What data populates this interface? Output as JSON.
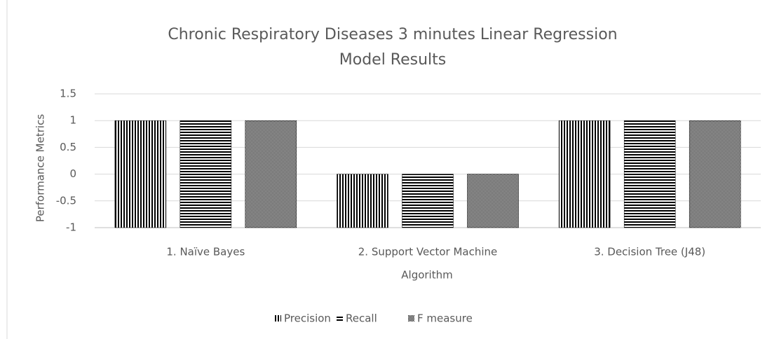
{
  "chart_data": {
    "type": "bar",
    "title": [
      "Chronic Respiratory Diseases 3 minutes  Linear Regression",
      "Model Results"
    ],
    "xlabel": "Algorithm",
    "ylabel": "Performance Metrics",
    "categories": [
      "1. Naïve Bayes",
      "2. Support Vector Machine",
      "3. Decision Tree (J48)"
    ],
    "series": [
      {
        "name": "Precision",
        "color": "#000000",
        "pattern": "vertical",
        "values": [
          1,
          0,
          1
        ]
      },
      {
        "name": "Recall",
        "color": "#000000",
        "pattern": "horizontal",
        "values": [
          1,
          0,
          1
        ]
      },
      {
        "name": "F measure",
        "color": "#000000",
        "pattern": "dots",
        "values": [
          1,
          0,
          1
        ]
      }
    ],
    "ylim": [
      -1,
      1.5
    ],
    "yticks": [
      1.5,
      1,
      0.5,
      0,
      -0.5,
      -1
    ],
    "grid": true,
    "legend": "bottom"
  }
}
